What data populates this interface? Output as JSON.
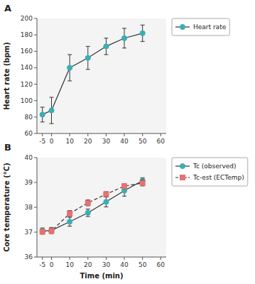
{
  "chart_data": [
    {
      "type": "line",
      "title": "A",
      "ylabel": "Heart rate (bpm)",
      "x": [
        -5,
        0,
        10,
        20,
        30,
        40,
        50
      ],
      "series": [
        {
          "name": "Heart rate",
          "color": "#3AAFB5",
          "marker": "circle",
          "line_style": "solid",
          "values": [
            83,
            88,
            140,
            152,
            166,
            176,
            182
          ],
          "errors": [
            9,
            16,
            16,
            14,
            10,
            12,
            10
          ]
        }
      ],
      "color": "#333333",
      "xlim": [
        -8,
        63
      ],
      "xticks": [
        -5,
        0,
        10,
        20,
        30,
        40,
        50,
        60
      ],
      "ylim": [
        60,
        200
      ],
      "yticks": [
        60,
        80,
        100,
        120,
        140,
        160,
        180,
        200
      ],
      "grid": false,
      "legend": "right"
    },
    {
      "type": "line",
      "title": "B",
      "ylabel": "Core temperature (°C)",
      "xlabel": "Time (min)",
      "x": [
        -5,
        0,
        10,
        20,
        30,
        40,
        50
      ],
      "series": [
        {
          "name": "Tc (observed)",
          "color": "#3AAFB5",
          "marker": "circle",
          "line_style": "solid",
          "values": [
            37.05,
            37.07,
            37.42,
            37.78,
            38.22,
            38.67,
            39.07
          ],
          "errors": [
            0.12,
            0.12,
            0.18,
            0.15,
            0.2,
            0.22,
            0.12
          ]
        },
        {
          "name": "Tc‑est (ECTemp)",
          "color": "#E87070",
          "marker": "square",
          "line_style": "dashed",
          "values": [
            37.02,
            37.05,
            37.75,
            38.18,
            38.53,
            38.85,
            38.98
          ],
          "errors": [
            0.1,
            0.1,
            0.12,
            0.12,
            0.1,
            0.1,
            0.12
          ]
        }
      ],
      "color": "#333333",
      "xlim": [
        -8,
        63
      ],
      "xticks": [
        -5,
        0,
        10,
        20,
        30,
        40,
        50,
        60
      ],
      "ylim": [
        36,
        40
      ],
      "yticks": [
        36,
        37,
        38,
        39,
        40
      ],
      "grid": false,
      "legend": "right"
    }
  ]
}
